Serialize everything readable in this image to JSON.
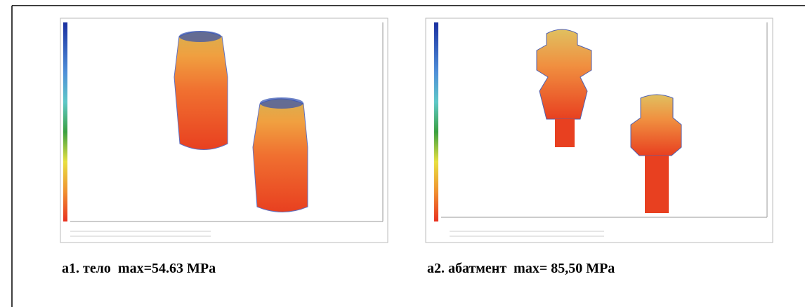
{
  "figure": {
    "panels": [
      {
        "caption": "а1. тело  max=54.63 MPa"
      },
      {
        "caption": "а2. абатмент  max= 85,50 MPa"
      }
    ]
  }
}
